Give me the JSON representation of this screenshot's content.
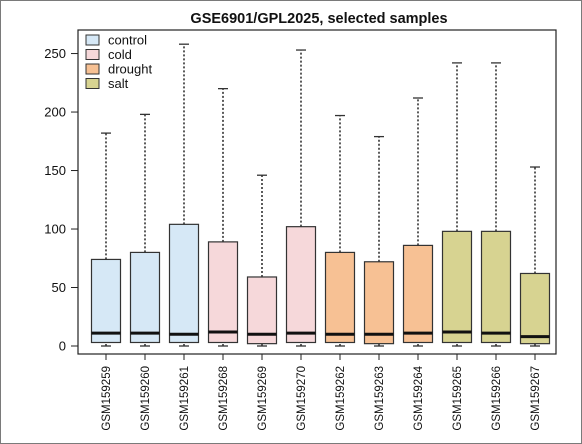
{
  "chart_data": {
    "type": "boxplot",
    "title": "GSE6901/GPL2025, selected samples",
    "xlabel": "",
    "ylabel": "",
    "ylim": [
      0,
      265
    ],
    "yticks": [
      0,
      50,
      100,
      150,
      200,
      250
    ],
    "grid": false,
    "legend_position": "top-left",
    "groups": [
      {
        "name": "control",
        "color": "#d6e8f6"
      },
      {
        "name": "cold",
        "color": "#f6d8da"
      },
      {
        "name": "drought",
        "color": "#f7c194"
      },
      {
        "name": "salt",
        "color": "#d7d391"
      }
    ],
    "samples": [
      {
        "label": "GSM159259",
        "group": "control",
        "min": 0,
        "q1": 3,
        "median": 11,
        "q3": 74,
        "max": 182
      },
      {
        "label": "GSM159260",
        "group": "control",
        "min": 0,
        "q1": 3,
        "median": 11,
        "q3": 80,
        "max": 198
      },
      {
        "label": "GSM159261",
        "group": "control",
        "min": 0,
        "q1": 3,
        "median": 10,
        "q3": 104,
        "max": 258
      },
      {
        "label": "GSM159268",
        "group": "cold",
        "min": 0,
        "q1": 3,
        "median": 12,
        "q3": 89,
        "max": 220
      },
      {
        "label": "GSM159269",
        "group": "cold",
        "min": 0,
        "q1": 2,
        "median": 10,
        "q3": 59,
        "max": 146
      },
      {
        "label": "GSM159270",
        "group": "cold",
        "min": 0,
        "q1": 3,
        "median": 11,
        "q3": 102,
        "max": 253
      },
      {
        "label": "GSM159262",
        "group": "drought",
        "min": 0,
        "q1": 3,
        "median": 10,
        "q3": 80,
        "max": 197
      },
      {
        "label": "GSM159263",
        "group": "drought",
        "min": 0,
        "q1": 2,
        "median": 10,
        "q3": 72,
        "max": 179
      },
      {
        "label": "GSM159264",
        "group": "drought",
        "min": 0,
        "q1": 3,
        "median": 11,
        "q3": 86,
        "max": 212
      },
      {
        "label": "GSM159265",
        "group": "salt",
        "min": 0,
        "q1": 3,
        "median": 12,
        "q3": 98,
        "max": 242
      },
      {
        "label": "GSM159266",
        "group": "salt",
        "min": 0,
        "q1": 3,
        "median": 11,
        "q3": 98,
        "max": 242
      },
      {
        "label": "GSM159267",
        "group": "salt",
        "min": 0,
        "q1": 2,
        "median": 8,
        "q3": 62,
        "max": 153
      }
    ]
  }
}
